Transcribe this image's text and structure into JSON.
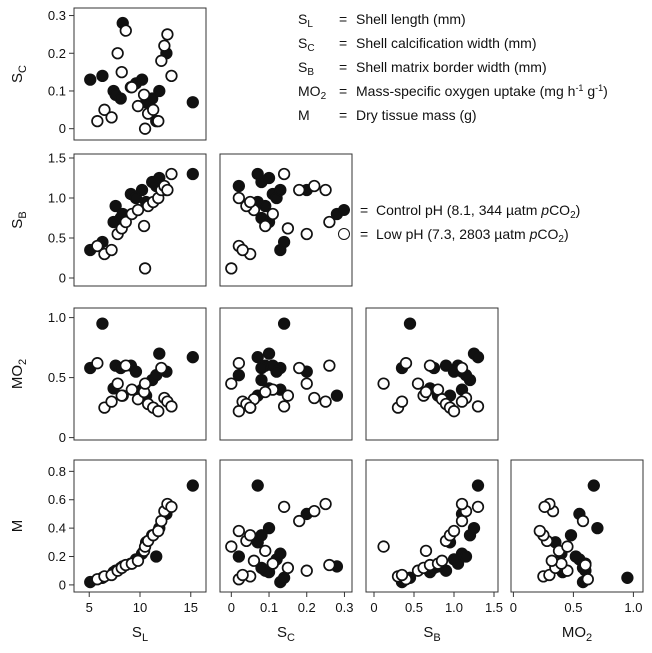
{
  "variables": {
    "SL": {
      "base": "S",
      "sub": "L",
      "name": "Shell length (mm)"
    },
    "SC": {
      "base": "S",
      "sub": "C",
      "name": "Shell calcification width (mm)"
    },
    "SB": {
      "base": "S",
      "sub": "B",
      "name": "Shell matrix border width (mm)"
    },
    "MO2": {
      "base": "MO",
      "sub": "2",
      "name": "Mass-specific oxygen uptake (mg h-1 g-1)"
    },
    "M": {
      "base": "M",
      "sub": "",
      "name": "Dry tissue mass (g)"
    }
  },
  "definitions": [
    {
      "base": "S",
      "sub": "L",
      "eq": "=",
      "text": "Shell length (mm)"
    },
    {
      "base": "S",
      "sub": "C",
      "eq": "=",
      "text": "Shell calcification width (mm)"
    },
    {
      "base": "S",
      "sub": "B",
      "eq": "=",
      "text": "Shell matrix border width (mm)"
    },
    {
      "base": "MO",
      "sub": "2",
      "eq": "=",
      "text_pre": "Mass-specific oxygen uptake (mg h",
      "sup1": "-1",
      "text_mid": " g",
      "sup2": "-1",
      "text_post": ")"
    },
    {
      "base": "M",
      "sub": "",
      "eq": "=",
      "text": "Dry tissue mass (g)"
    }
  ],
  "legend": [
    {
      "fill": "#111111",
      "eq": "=",
      "pre": "Control pH (8.1, 344 µatm ",
      "italic": "p",
      "co": "CO",
      "sub": "2",
      "post": ")"
    },
    {
      "fill": "#ffffff",
      "eq": "=",
      "pre": "Low pH (7.3, 2803 µatm ",
      "italic": "p",
      "co": "CO",
      "sub": "2",
      "post": ")"
    }
  ],
  "colors": {
    "control": "#111111",
    "low_ph": "#ffffff",
    "edge": "#111111"
  },
  "chart_data": {
    "type": "scatter",
    "subtype": "scatterplot-matrix (lower triangle)",
    "variable_order": [
      "SL",
      "SC",
      "SB",
      "MO2",
      "M"
    ],
    "columns": [
      "SL",
      "SC",
      "SB",
      "MO2"
    ],
    "rows": [
      "SC",
      "SB",
      "MO2",
      "M"
    ],
    "axes": {
      "SL": {
        "range": [
          3.5,
          16.5
        ],
        "ticks": [
          5,
          10,
          15
        ]
      },
      "SC": {
        "range": [
          -0.03,
          0.32
        ],
        "ticks": [
          0,
          0.1,
          0.2,
          0.3
        ]
      },
      "SB": {
        "range": [
          -0.1,
          1.55
        ],
        "ticks": [
          0,
          0.5,
          1.0,
          1.5
        ]
      },
      "MO2": {
        "range": [
          -0.02,
          1.08
        ],
        "ticks": [
          0,
          0.5,
          1.0
        ]
      },
      "M": {
        "range": [
          -0.05,
          0.88
        ],
        "ticks": [
          0,
          0.2,
          0.4,
          0.6,
          0.8
        ]
      }
    },
    "tick_labels": {
      "SL": [
        "5",
        "10",
        "15"
      ],
      "SC": [
        "0",
        "0.1",
        "0.2",
        "0.3"
      ],
      "SB": [
        "0",
        "0.5",
        "1.0",
        "1.5"
      ],
      "MO2": [
        "0",
        "0.5",
        "1.0"
      ],
      "M": [
        "0",
        "0.2",
        "0.4",
        "0.6",
        "0.8"
      ]
    },
    "grid": false,
    "series": [
      {
        "group": "control",
        "marker": "filled circle",
        "points": [
          {
            "SL": 5.1,
            "SC": 0.13,
            "SB": 0.35,
            "MO2": 0.58,
            "M": 0.02
          },
          {
            "SL": 6.3,
            "SC": 0.14,
            "SB": 0.45,
            "MO2": 0.95,
            "M": 0.05
          },
          {
            "SL": 7.4,
            "SC": 0.1,
            "SB": 0.7,
            "MO2": 0.41,
            "M": 0.09
          },
          {
            "SL": 7.6,
            "SC": 0.09,
            "SB": 0.9,
            "MO2": 0.6,
            "M": 0.1
          },
          {
            "SL": 8.1,
            "SC": 0.08,
            "SB": 0.75,
            "MO2": 0.58,
            "M": 0.12
          },
          {
            "SL": 8.3,
            "SC": 0.28,
            "SB": 0.8,
            "MO2": 0.35,
            "M": 0.13
          },
          {
            "SL": 9.1,
            "SC": 0.11,
            "SB": 1.05,
            "MO2": 0.6,
            "M": 0.15
          },
          {
            "SL": 9.6,
            "SC": 0.12,
            "SB": 1.0,
            "MO2": 0.55,
            "M": 0.18
          },
          {
            "SL": 10.2,
            "SC": 0.13,
            "SB": 1.1,
            "MO2": 0.4,
            "M": 0.22
          },
          {
            "SL": 10.6,
            "SC": 0.07,
            "SB": 0.95,
            "MO2": 0.35,
            "M": 0.3
          },
          {
            "SL": 11.2,
            "SC": 0.08,
            "SB": 1.2,
            "MO2": 0.48,
            "M": 0.35
          },
          {
            "SL": 11.6,
            "SC": 0.02,
            "SB": 1.15,
            "MO2": 0.52,
            "M": 0.2
          },
          {
            "SL": 11.9,
            "SC": 0.1,
            "SB": 1.25,
            "MO2": 0.7,
            "M": 0.4
          },
          {
            "SL": 12.6,
            "SC": 0.2,
            "SB": 1.1,
            "MO2": 0.55,
            "M": 0.5
          },
          {
            "SL": 15.2,
            "SC": 0.07,
            "SB": 1.3,
            "MO2": 0.67,
            "M": 0.7
          }
        ]
      },
      {
        "group": "low_ph",
        "marker": "open circle",
        "points": [
          {
            "SL": 5.8,
            "SC": 0.02,
            "SB": 0.4,
            "MO2": 0.62,
            "M": 0.04
          },
          {
            "SL": 6.5,
            "SC": 0.05,
            "SB": 0.3,
            "MO2": 0.25,
            "M": 0.06
          },
          {
            "SL": 7.2,
            "SC": 0.03,
            "SB": 0.35,
            "MO2": 0.3,
            "M": 0.07
          },
          {
            "SL": 7.8,
            "SC": 0.2,
            "SB": 0.55,
            "MO2": 0.45,
            "M": 0.1
          },
          {
            "SL": 8.2,
            "SC": 0.15,
            "SB": 0.62,
            "MO2": 0.35,
            "M": 0.12
          },
          {
            "SL": 8.6,
            "SC": 0.26,
            "SB": 0.7,
            "MO2": 0.6,
            "M": 0.14
          },
          {
            "SL": 9.2,
            "SC": 0.11,
            "SB": 0.8,
            "MO2": 0.4,
            "M": 0.15
          },
          {
            "SL": 9.8,
            "SC": 0.06,
            "SB": 0.85,
            "MO2": 0.32,
            "M": 0.17
          },
          {
            "SL": 10.4,
            "SC": 0.09,
            "SB": 0.65,
            "MO2": 0.38,
            "M": 0.24
          },
          {
            "SL": 10.5,
            "SC": 0.0,
            "SB": 0.12,
            "MO2": 0.45,
            "M": 0.27
          },
          {
            "SL": 10.8,
            "SC": 0.04,
            "SB": 0.9,
            "MO2": 0.28,
            "M": 0.31
          },
          {
            "SL": 11.3,
            "SC": 0.05,
            "SB": 0.95,
            "MO2": 0.25,
            "M": 0.35
          },
          {
            "SL": 11.8,
            "SC": 0.02,
            "SB": 1.0,
            "MO2": 0.22,
            "M": 0.38
          },
          {
            "SL": 12.1,
            "SC": 0.18,
            "SB": 1.1,
            "MO2": 0.58,
            "M": 0.45
          },
          {
            "SL": 12.4,
            "SC": 0.22,
            "SB": 1.15,
            "MO2": 0.33,
            "M": 0.52
          },
          {
            "SL": 12.7,
            "SC": 0.25,
            "SB": 1.1,
            "MO2": 0.3,
            "M": 0.57
          },
          {
            "SL": 13.1,
            "SC": 0.14,
            "SB": 1.3,
            "MO2": 0.26,
            "M": 0.55
          }
        ]
      }
    ]
  }
}
